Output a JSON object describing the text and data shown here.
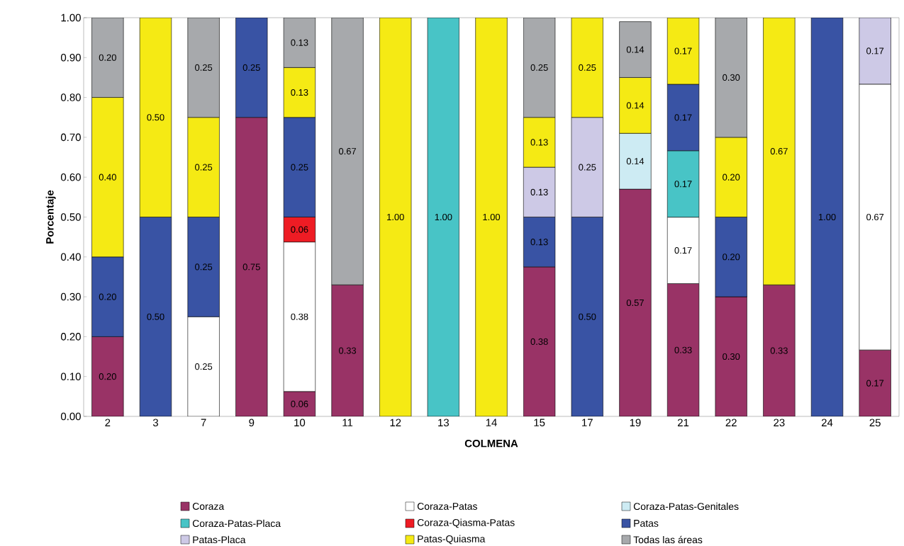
{
  "chart_data": {
    "type": "bar",
    "stacked": true,
    "xlabel": "COLMENA",
    "ylabel": "Porcentaje",
    "categories": [
      "2",
      "3",
      "7",
      "9",
      "10",
      "11",
      "12",
      "13",
      "14",
      "15",
      "17",
      "19",
      "21",
      "22",
      "23",
      "24",
      "25"
    ],
    "series": [
      {
        "name": "Coraza",
        "color": "#993366",
        "values": [
          0.2,
          null,
          null,
          0.75,
          0.0625,
          0.33,
          null,
          null,
          null,
          0.375,
          null,
          0.57,
          0.333,
          0.3,
          0.33,
          null,
          0.1667
        ],
        "value_labels": [
          "0.20",
          null,
          null,
          "0.75",
          "0.06",
          "0.33",
          null,
          null,
          null,
          "0.38",
          null,
          "0.57",
          "0.33",
          "0.30",
          "0.33",
          null,
          "0.17"
        ]
      },
      {
        "name": "Coraza-Patas",
        "color": "#ffffff",
        "values": [
          null,
          null,
          0.25,
          null,
          0.375,
          null,
          null,
          null,
          null,
          null,
          null,
          null,
          0.1667,
          null,
          null,
          null,
          0.6666
        ],
        "value_labels": [
          null,
          null,
          "0.25",
          null,
          "0.38",
          null,
          null,
          null,
          null,
          null,
          null,
          null,
          "0.17",
          null,
          null,
          null,
          "0.67"
        ]
      },
      {
        "name": "Coraza-Patas-Genitales",
        "color": "#cdebf3",
        "values": [
          null,
          null,
          null,
          null,
          null,
          null,
          null,
          null,
          null,
          null,
          null,
          0.14,
          null,
          null,
          null,
          null,
          null
        ],
        "value_labels": [
          null,
          null,
          null,
          null,
          null,
          null,
          null,
          null,
          null,
          null,
          null,
          "0.14",
          null,
          null,
          null,
          null,
          null
        ]
      },
      {
        "name": "Coraza-Patas-Placa",
        "color": "#48c4c6",
        "values": [
          null,
          null,
          null,
          null,
          null,
          null,
          null,
          1.0,
          null,
          null,
          null,
          null,
          0.1667,
          null,
          null,
          null,
          null
        ],
        "value_labels": [
          null,
          null,
          null,
          null,
          null,
          null,
          null,
          "1.00",
          null,
          null,
          null,
          null,
          "0.17",
          null,
          null,
          null,
          null
        ]
      },
      {
        "name": "Coraza-Qiasma-Patas",
        "color": "#ee1c24",
        "values": [
          null,
          null,
          null,
          null,
          0.0625,
          null,
          null,
          null,
          null,
          null,
          null,
          null,
          null,
          null,
          null,
          null,
          null
        ],
        "value_labels": [
          null,
          null,
          null,
          null,
          "0.06",
          null,
          null,
          null,
          null,
          null,
          null,
          null,
          null,
          null,
          null,
          null,
          null
        ]
      },
      {
        "name": "Patas",
        "color": "#3953a4",
        "values": [
          0.2,
          0.5,
          0.25,
          0.25,
          0.25,
          null,
          null,
          null,
          null,
          0.125,
          0.5,
          null,
          0.1667,
          0.2,
          null,
          1.0,
          null
        ],
        "value_labels": [
          "0.20",
          "0.50",
          "0.25",
          "0.25",
          "0.25",
          null,
          null,
          null,
          null,
          "0.13",
          "0.50",
          null,
          "0.17",
          "0.20",
          null,
          "1.00",
          null
        ]
      },
      {
        "name": "Patas-Placa",
        "color": "#cdc9e6",
        "values": [
          null,
          null,
          null,
          null,
          null,
          null,
          null,
          null,
          null,
          0.125,
          0.25,
          null,
          null,
          null,
          null,
          null,
          0.1667
        ],
        "value_labels": [
          null,
          null,
          null,
          null,
          null,
          null,
          null,
          null,
          null,
          "0.13",
          "0.25",
          null,
          null,
          null,
          null,
          null,
          "0.17"
        ]
      },
      {
        "name": "Patas-Quiasma",
        "color": "#f5ea14",
        "values": [
          0.4,
          0.5,
          0.25,
          null,
          0.125,
          null,
          1.0,
          null,
          1.0,
          0.125,
          0.25,
          0.14,
          0.1667,
          0.2,
          0.67,
          null,
          null
        ],
        "value_labels": [
          "0.40",
          "0.50",
          "0.25",
          null,
          "0.13",
          null,
          "1.00",
          null,
          "1.00",
          "0.13",
          "0.25",
          "0.14",
          "0.17",
          "0.20",
          "0.67",
          null,
          null
        ]
      },
      {
        "name": "Todas las áreas",
        "color": "#a7a9ac",
        "values": [
          0.2,
          null,
          0.25,
          null,
          0.125,
          0.67,
          null,
          null,
          null,
          0.25,
          null,
          0.14,
          null,
          0.3,
          null,
          null,
          null
        ],
        "value_labels": [
          "0.20",
          null,
          "0.25",
          null,
          "0.13",
          "0.67",
          null,
          null,
          null,
          "0.25",
          null,
          "0.14",
          null,
          "0.30",
          null,
          null,
          null
        ]
      }
    ],
    "ylim": [
      0,
      1.0
    ],
    "yticks": [
      {
        "value": 0,
        "label": "0.00"
      },
      {
        "value": 0.1,
        "label": "0.10"
      },
      {
        "value": 0.2,
        "label": "0.20"
      },
      {
        "value": 0.3,
        "label": "0.30"
      },
      {
        "value": 0.4,
        "label": "0.40"
      },
      {
        "value": 0.5,
        "label": "0.50"
      },
      {
        "value": 0.6,
        "label": "0.60"
      },
      {
        "value": 0.7,
        "label": "0.70"
      },
      {
        "value": 0.8,
        "label": "0.80"
      },
      {
        "value": 0.9,
        "label": "0.90"
      },
      {
        "value": 1.0,
        "label": "1.00"
      }
    ],
    "grid": false,
    "legend": "bottom"
  }
}
